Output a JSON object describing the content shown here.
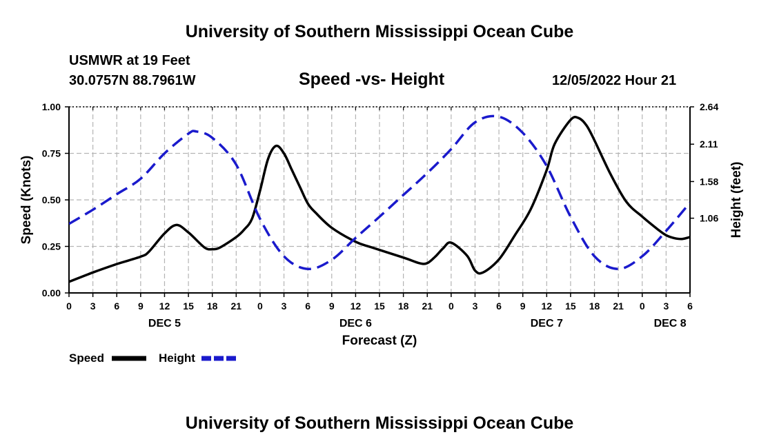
{
  "header": {
    "title": "University of Southern Mississippi Ocean Cube",
    "station": "USMWR at 19 Feet",
    "coords": "30.0757N  88.7961W",
    "subtitle": "Speed -vs- Height",
    "datetime": "12/05/2022 Hour 21",
    "footer_title": "University of Southern Mississippi Ocean Cube"
  },
  "legend": {
    "speed_label": "Speed",
    "height_label": "Height"
  },
  "colors": {
    "speed": "#000000",
    "height": "#1a1acc",
    "grid": "#b4b4b4"
  },
  "chart_data": {
    "type": "line",
    "title": "Speed -vs- Height",
    "xlabel": "Forecast (Z)",
    "ylabel": "Speed (Knots)",
    "y2label": "Height (feet)",
    "xlim": [
      0,
      78
    ],
    "ylim": [
      0,
      1.0
    ],
    "y2lim": [
      0.0,
      2.64
    ],
    "x_ticks": [
      0,
      3,
      6,
      9,
      12,
      15,
      18,
      21,
      24,
      27,
      30,
      33,
      36,
      39,
      42,
      45,
      48,
      51,
      54,
      57,
      60,
      63,
      66,
      69,
      72,
      75,
      78
    ],
    "x_tick_labels": [
      "0",
      "3",
      "6",
      "9",
      "12",
      "15",
      "18",
      "21",
      "0",
      "3",
      "6",
      "9",
      "12",
      "15",
      "18",
      "21",
      "0",
      "3",
      "6",
      "9",
      "12",
      "15",
      "18",
      "21",
      "0",
      "3",
      "6"
    ],
    "day_labels": [
      {
        "x": 12,
        "label": "DEC 5"
      },
      {
        "x": 36,
        "label": "DEC 6"
      },
      {
        "x": 60,
        "label": "DEC 7"
      },
      {
        "x": 75.5,
        "label": "DEC 8"
      }
    ],
    "y_ticks": [
      0.0,
      0.25,
      0.5,
      0.75,
      1.0
    ],
    "y_tick_labels": [
      "0.00",
      "0.25",
      "0.50",
      "0.75",
      "1.00"
    ],
    "y2_ticks": [
      1.06,
      1.58,
      2.11,
      2.64
    ],
    "y2_tick_labels": [
      "1.06",
      "1.58",
      "2.11",
      "2.64"
    ],
    "grid": true,
    "series": [
      {
        "name": "Speed",
        "axis": "left",
        "style": "solid",
        "x": [
          0,
          3,
          6,
          9,
          10,
          12,
          13.5,
          15,
          17,
          18,
          19,
          21,
          22,
          23,
          24,
          25,
          26,
          27,
          28,
          29,
          30,
          31,
          33,
          36,
          38,
          42,
          44,
          45,
          46,
          47,
          48,
          50,
          51,
          52,
          54,
          56,
          58,
          60,
          61,
          63,
          64,
          65,
          66,
          68,
          70,
          72,
          74,
          75,
          76,
          77,
          78
        ],
        "values": [
          0.06,
          0.11,
          0.155,
          0.195,
          0.22,
          0.32,
          0.365,
          0.325,
          0.245,
          0.235,
          0.245,
          0.3,
          0.34,
          0.4,
          0.55,
          0.72,
          0.79,
          0.75,
          0.66,
          0.57,
          0.48,
          0.43,
          0.35,
          0.275,
          0.245,
          0.19,
          0.16,
          0.16,
          0.195,
          0.24,
          0.27,
          0.2,
          0.12,
          0.11,
          0.18,
          0.31,
          0.45,
          0.66,
          0.8,
          0.93,
          0.94,
          0.9,
          0.82,
          0.64,
          0.49,
          0.41,
          0.34,
          0.31,
          0.295,
          0.29,
          0.3
        ]
      },
      {
        "name": "Height",
        "axis": "right",
        "style": "dashed",
        "x": [
          0,
          3,
          6,
          9,
          12,
          15,
          16,
          18,
          21,
          24,
          27,
          30,
          33,
          36,
          39,
          42,
          45,
          48,
          51,
          54,
          57,
          60,
          63,
          66,
          69,
          72,
          75,
          78
        ],
        "values": [
          0.98,
          1.18,
          1.4,
          1.62,
          1.98,
          2.26,
          2.29,
          2.2,
          1.82,
          1.05,
          0.52,
          0.34,
          0.47,
          0.78,
          1.08,
          1.39,
          1.7,
          2.04,
          2.42,
          2.5,
          2.27,
          1.8,
          1.08,
          0.52,
          0.34,
          0.52,
          0.88,
          1.28
        ]
      }
    ]
  }
}
